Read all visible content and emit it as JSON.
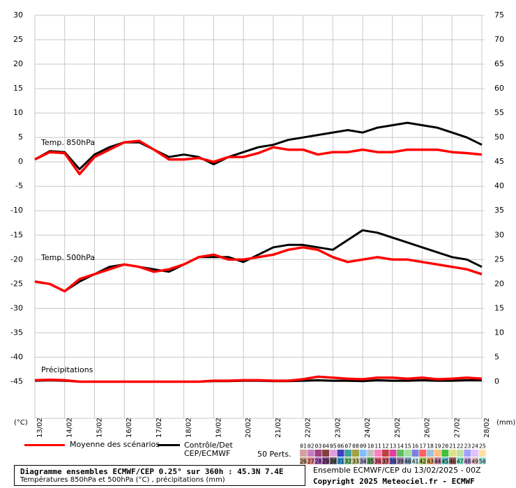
{
  "chart_data": {
    "type": "line",
    "panel_labels": [
      "Temp. 850hPa",
      "Temp. 500hPa",
      "Précipitations"
    ],
    "y_unit": "(°C)",
    "y2_unit": "(mm)",
    "x": [
      0,
      0.5,
      1,
      1.5,
      2,
      2.5,
      3,
      3.5,
      4,
      4.5,
      5,
      5.5,
      6,
      6.5,
      7,
      7.5,
      8,
      8.5,
      9,
      9.5,
      10,
      10.5,
      11,
      11.5,
      12,
      12.5,
      13,
      13.5,
      14,
      14.5,
      15
    ],
    "xlim": [
      0,
      15
    ],
    "xticks": [
      {
        "value": 0,
        "label": "13/02"
      },
      {
        "value": 1,
        "label": "14/02"
      },
      {
        "value": 2,
        "label": "15/02"
      },
      {
        "value": 3,
        "label": "16/02"
      },
      {
        "value": 4,
        "label": "17/02"
      },
      {
        "value": 5,
        "label": "18/02"
      },
      {
        "value": 6,
        "label": "19/02"
      },
      {
        "value": 7,
        "label": "20/02"
      },
      {
        "value": 8,
        "label": "21/02"
      },
      {
        "value": 9,
        "label": "22/02"
      },
      {
        "value": 10,
        "label": "23/02"
      },
      {
        "value": 11,
        "label": "24/02"
      },
      {
        "value": 12,
        "label": "25/02"
      },
      {
        "value": 13,
        "label": "26/02"
      },
      {
        "value": 14,
        "label": "27/02"
      },
      {
        "value": 15,
        "label": "28/02"
      }
    ],
    "ylim": [
      -52.5,
      30
    ],
    "yticks": [
      30,
      25,
      20,
      15,
      10,
      5,
      0,
      -5,
      -10,
      -15,
      -20,
      -25,
      -30,
      -35,
      -40,
      -45
    ],
    "y2lim": [
      -7.5,
      75
    ],
    "y2ticks": [
      75,
      70,
      65,
      60,
      55,
      50,
      45,
      40,
      35,
      30,
      25,
      20,
      15,
      10,
      5,
      0
    ],
    "grid": true,
    "series": [
      {
        "name": "Moyenne des scénarios",
        "color": "#ff0000",
        "t850": [
          0.5,
          2,
          1.8,
          -2.5,
          1,
          2.5,
          4,
          4.3,
          2.5,
          0.5,
          0.5,
          0.8,
          0,
          1,
          1,
          1.8,
          3,
          2.5,
          2.5,
          1.5,
          2,
          2,
          2.5,
          2,
          2,
          2.5,
          2.5,
          2.5,
          2,
          1.8,
          1.5
        ],
        "t500": [
          -24.5,
          -25,
          -26.5,
          -24,
          -23,
          -22,
          -21,
          -21.5,
          -22.5,
          -22,
          -21,
          -19.5,
          -19,
          -20,
          -20,
          -19.5,
          -19,
          -18,
          -17.5,
          -18,
          -19.5,
          -20.5,
          -20,
          -19.5,
          -20,
          -20,
          -20.5,
          -21,
          -21.5,
          -22,
          -23
        ],
        "precip": [
          0.3,
          0.4,
          0.3,
          0,
          0,
          0,
          0,
          0,
          0,
          0,
          0,
          0,
          0.2,
          0.2,
          0.3,
          0.3,
          0.2,
          0.2,
          0.5,
          1,
          0.8,
          0.6,
          0.5,
          0.8,
          0.8,
          0.6,
          0.8,
          0.5,
          0.6,
          0.8,
          0.6
        ]
      },
      {
        "name": "Contrôle/Det CEP/ECMWF",
        "color": "#000000",
        "t850": [
          0.5,
          2.2,
          2,
          -1.5,
          1.5,
          3,
          4,
          4,
          2.5,
          1,
          1.5,
          1,
          -0.5,
          1,
          2,
          3,
          3.5,
          4.5,
          5,
          5.5,
          6,
          6.5,
          6,
          7,
          7.5,
          8,
          7.5,
          7,
          6,
          5,
          3.5
        ],
        "t500": [
          -24.5,
          -25,
          -26.5,
          -24.5,
          -23,
          -21.5,
          -21,
          -21.5,
          -22,
          -22.5,
          -21,
          -19.5,
          -19.5,
          -19.5,
          -20.5,
          -19,
          -17.5,
          -17,
          -17,
          -17.5,
          -18,
          -16,
          -14,
          -14.5,
          -15.5,
          -16.5,
          -17.5,
          -18.5,
          -19.5,
          -20,
          -21.5
        ],
        "precip": [
          0.2,
          0.3,
          0.2,
          0,
          0,
          0,
          0,
          0,
          0,
          0,
          0,
          0,
          0.1,
          0.1,
          0.2,
          0.2,
          0.1,
          0.1,
          0.2,
          0.3,
          0.2,
          0.2,
          0.1,
          0.3,
          0.2,
          0.2,
          0.3,
          0.2,
          0.2,
          0.3,
          0.3
        ]
      }
    ],
    "members_label": "50 Perts.",
    "members": [
      {
        "name": "01",
        "color": "#d4a0a0"
      },
      {
        "name": "02",
        "color": "#c080c0"
      },
      {
        "name": "03",
        "color": "#a04080"
      },
      {
        "name": "04",
        "color": "#804040"
      },
      {
        "name": "05",
        "color": "#e0a0e0"
      },
      {
        "name": "06",
        "color": "#4040c0"
      },
      {
        "name": "07",
        "color": "#40a0a0"
      },
      {
        "name": "08",
        "color": "#a0a040"
      },
      {
        "name": "09",
        "color": "#80c0ff"
      },
      {
        "name": "10",
        "color": "#c0c0c0"
      },
      {
        "name": "11",
        "color": "#ff80c0"
      },
      {
        "name": "12",
        "color": "#c04040"
      },
      {
        "name": "13",
        "color": "#e040a0"
      },
      {
        "name": "14",
        "color": "#60c060"
      },
      {
        "name": "15",
        "color": "#a0e0a0"
      },
      {
        "name": "16",
        "color": "#8080e0"
      },
      {
        "name": "17",
        "color": "#ff6060"
      },
      {
        "name": "18",
        "color": "#a0c0e0"
      },
      {
        "name": "19",
        "color": "#ffc080"
      },
      {
        "name": "20",
        "color": "#40c040"
      },
      {
        "name": "21",
        "color": "#e0e080"
      },
      {
        "name": "22",
        "color": "#c0e0a0"
      },
      {
        "name": "23",
        "color": "#a0a0ff"
      },
      {
        "name": "24",
        "color": "#e0c0ff"
      },
      {
        "name": "25",
        "color": "#ffe0a0"
      },
      {
        "name": "26",
        "color": "#c0a080"
      },
      {
        "name": "27",
        "color": "#e08080"
      },
      {
        "name": "28",
        "color": "#a060c0"
      },
      {
        "name": "29",
        "color": "#804080"
      },
      {
        "name": "30",
        "color": "#606060"
      },
      {
        "name": "31",
        "color": "#40a0e0"
      },
      {
        "name": "32",
        "color": "#80c080"
      },
      {
        "name": "33",
        "color": "#c0c080"
      },
      {
        "name": "34",
        "color": "#a0a0c0"
      },
      {
        "name": "35",
        "color": "#60a060"
      },
      {
        "name": "36",
        "color": "#e06080"
      },
      {
        "name": "37",
        "color": "#c06060"
      },
      {
        "name": "38",
        "color": "#6060c0"
      },
      {
        "name": "39",
        "color": "#a080a0"
      },
      {
        "name": "40",
        "color": "#80a0c0"
      },
      {
        "name": "41",
        "color": "#c0e0e0"
      },
      {
        "name": "42",
        "color": "#a0c060"
      },
      {
        "name": "43",
        "color": "#e0a060"
      },
      {
        "name": "44",
        "color": "#c080a0"
      },
      {
        "name": "45",
        "color": "#60c0c0"
      },
      {
        "name": "46",
        "color": "#a06060"
      },
      {
        "name": "47",
        "color": "#80e0c0"
      },
      {
        "name": "48",
        "color": "#c0a0e0"
      },
      {
        "name": "49",
        "color": "#e0c0c0"
      },
      {
        "name": "50",
        "color": "#a0e0e0"
      }
    ],
    "title": "Diagramme ensembles ECMWF/CEP 0.25° sur 360h : 45.3N 7.4E",
    "subtitle": "Températures 850hPa et 500hPa (°C) , précipitations (mm)",
    "run_info": "Ensemble ECMWF/CEP du 13/02/2025 - 00Z",
    "copyright": "Copyright 2025 Meteociel.fr - ECMWF"
  }
}
